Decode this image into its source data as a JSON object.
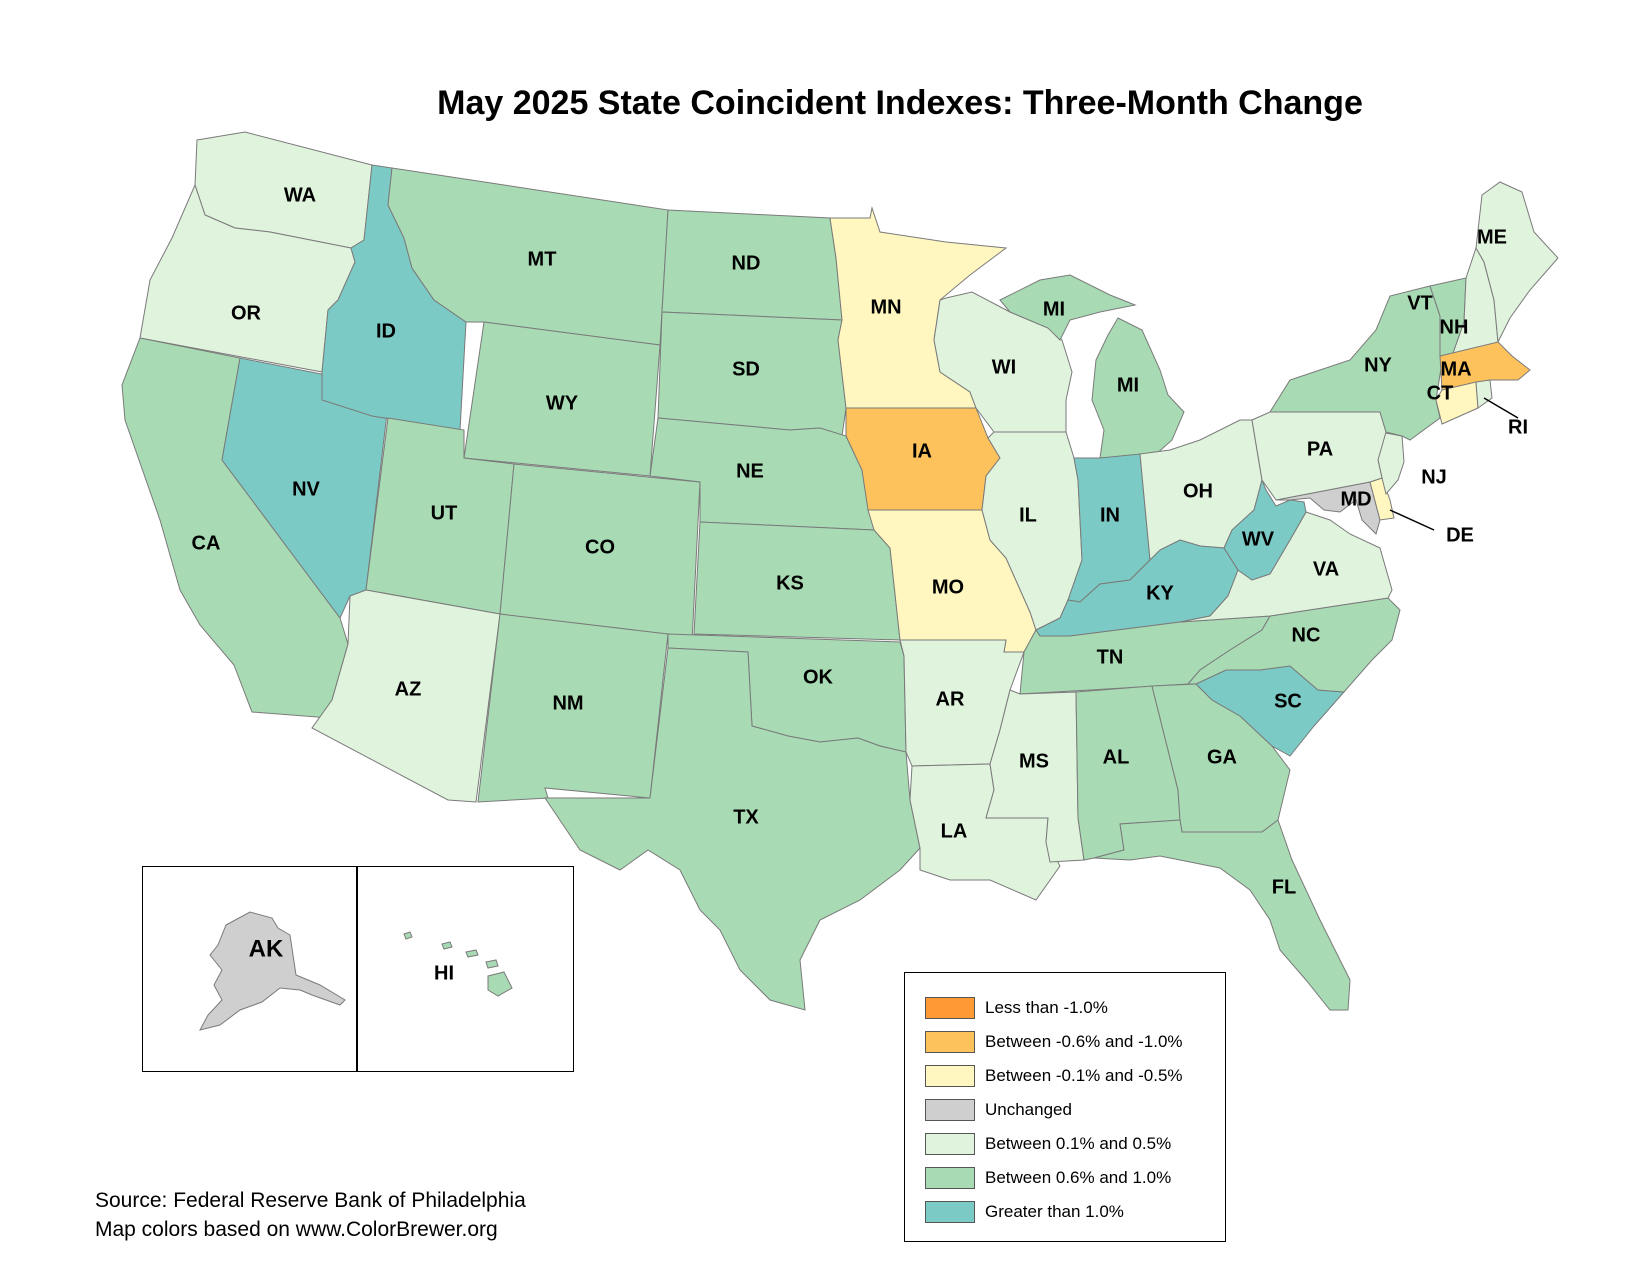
{
  "title": "May 2025 State Coincident Indexes: Three-Month Change",
  "legend": [
    {
      "label": "Less than -1.0%",
      "color": "#fd9a33"
    },
    {
      "label": "Between -0.6% and -1.0%",
      "color": "#fec25c"
    },
    {
      "label": "Between -0.1% and -0.5%",
      "color": "#fff7bf"
    },
    {
      "label": "Unchanged",
      "color": "#cfcfcf"
    },
    {
      "label": "Between 0.1% and 0.5%",
      "color": "#e0f3dd"
    },
    {
      "label": "Between 0.6% and 1.0%",
      "color": "#a8dbb4"
    },
    {
      "label": "Greater than 1.0%",
      "color": "#7ccac5"
    }
  ],
  "states": {
    "WA": 4,
    "OR": 4,
    "CA": 5,
    "NV": 6,
    "ID": 6,
    "MT": 5,
    "WY": 5,
    "UT": 5,
    "AZ": 4,
    "CO": 5,
    "NM": 5,
    "ND": 5,
    "SD": 5,
    "NE": 5,
    "KS": 5,
    "OK": 5,
    "TX": 5,
    "MN": 2,
    "IA": 1,
    "MO": 2,
    "AR": 4,
    "LA": 4,
    "WI": 4,
    "IL": 4,
    "MI": 5,
    "IN": 6,
    "OH": 4,
    "KY": 6,
    "TN": 5,
    "MS": 4,
    "AL": 5,
    "GA": 5,
    "FL": 5,
    "SC": 6,
    "NC": 5,
    "VA": 4,
    "WV": 6,
    "MD": 3,
    "DE": 2,
    "NJ": 4,
    "PA": 4,
    "NY": 5,
    "CT": 2,
    "RI": 4,
    "MA": 1,
    "VT": 5,
    "NH": 4,
    "ME": 4,
    "AK": 3,
    "HI": 5
  },
  "labels": {
    "WA": "WA",
    "OR": "OR",
    "CA": "CA",
    "NV": "NV",
    "ID": "ID",
    "MT": "MT",
    "WY": "WY",
    "UT": "UT",
    "AZ": "AZ",
    "CO": "CO",
    "NM": "NM",
    "ND": "ND",
    "SD": "SD",
    "NE": "NE",
    "KS": "KS",
    "OK": "OK",
    "TX": "TX",
    "MN": "MN",
    "IA": "IA",
    "MO": "MO",
    "AR": "AR",
    "LA": "LA",
    "WI": "WI",
    "IL": "IL",
    "MI_UP": "MI",
    "MI": "MI",
    "IN": "IN",
    "OH": "OH",
    "KY": "KY",
    "TN": "TN",
    "MS": "MS",
    "AL": "AL",
    "GA": "GA",
    "FL": "FL",
    "SC": "SC",
    "NC": "NC",
    "VA": "VA",
    "WV": "WV",
    "MD": "MD",
    "DE": "DE",
    "NJ": "NJ",
    "PA": "PA",
    "NY": "NY",
    "CT": "CT",
    "RI": "RI",
    "MA": "MA",
    "VT": "VT",
    "NH": "NH",
    "ME": "ME",
    "AK": "AK",
    "HI": "HI"
  },
  "source_line1": "Source: Federal Reserve Bank of Philadelphia",
  "source_line2": "Map colors based on www.ColorBrewer.org"
}
